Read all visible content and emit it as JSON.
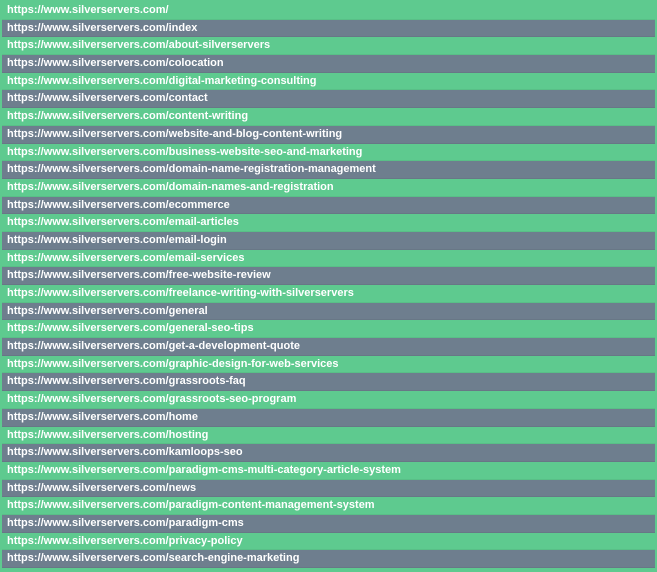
{
  "colors": {
    "green": "#5eca8f",
    "gray": "#6e7e8e",
    "text": "#ffffff"
  },
  "rows": [
    {
      "url": "https://www.silverservers.com/",
      "kind": "green"
    },
    {
      "url": "https://www.silverservers.com/index",
      "kind": "gray"
    },
    {
      "url": "https://www.silverservers.com/about-silverservers",
      "kind": "green"
    },
    {
      "url": "https://www.silverservers.com/colocation",
      "kind": "gray"
    },
    {
      "url": "https://www.silverservers.com/digital-marketing-consulting",
      "kind": "green"
    },
    {
      "url": "https://www.silverservers.com/contact",
      "kind": "gray"
    },
    {
      "url": "https://www.silverservers.com/content-writing",
      "kind": "green"
    },
    {
      "url": "https://www.silverservers.com/website-and-blog-content-writing",
      "kind": "gray"
    },
    {
      "url": "https://www.silverservers.com/business-website-seo-and-marketing",
      "kind": "green"
    },
    {
      "url": "https://www.silverservers.com/domain-name-registration-management",
      "kind": "gray"
    },
    {
      "url": "https://www.silverservers.com/domain-names-and-registration",
      "kind": "green"
    },
    {
      "url": "https://www.silverservers.com/ecommerce",
      "kind": "gray"
    },
    {
      "url": "https://www.silverservers.com/email-articles",
      "kind": "green"
    },
    {
      "url": "https://www.silverservers.com/email-login",
      "kind": "gray"
    },
    {
      "url": "https://www.silverservers.com/email-services",
      "kind": "green"
    },
    {
      "url": "https://www.silverservers.com/free-website-review",
      "kind": "gray"
    },
    {
      "url": "https://www.silverservers.com/freelance-writing-with-silverservers",
      "kind": "green"
    },
    {
      "url": "https://www.silverservers.com/general",
      "kind": "gray"
    },
    {
      "url": "https://www.silverservers.com/general-seo-tips",
      "kind": "green"
    },
    {
      "url": "https://www.silverservers.com/get-a-development-quote",
      "kind": "gray"
    },
    {
      "url": "https://www.silverservers.com/graphic-design-for-web-services",
      "kind": "green"
    },
    {
      "url": "https://www.silverservers.com/grassroots-faq",
      "kind": "gray"
    },
    {
      "url": "https://www.silverservers.com/grassroots-seo-program",
      "kind": "green"
    },
    {
      "url": "https://www.silverservers.com/home",
      "kind": "gray"
    },
    {
      "url": "https://www.silverservers.com/hosting",
      "kind": "green"
    },
    {
      "url": "https://www.silverservers.com/kamloops-seo",
      "kind": "gray"
    },
    {
      "url": "https://www.silverservers.com/paradigm-cms-multi-category-article-system",
      "kind": "green"
    },
    {
      "url": "https://www.silverservers.com/news",
      "kind": "gray"
    },
    {
      "url": "https://www.silverservers.com/paradigm-content-management-system",
      "kind": "green"
    },
    {
      "url": "https://www.silverservers.com/paradigm-cms",
      "kind": "gray"
    },
    {
      "url": "https://www.silverservers.com/privacy-policy",
      "kind": "green"
    },
    {
      "url": "https://www.silverservers.com/search-engine-marketing",
      "kind": "gray"
    }
  ]
}
